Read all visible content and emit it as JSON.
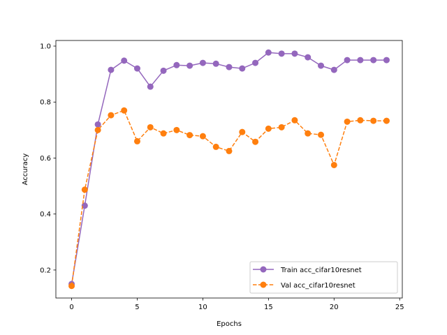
{
  "chart_data": {
    "type": "line",
    "title": "",
    "xlabel": "Epochs",
    "ylabel": "Accuracy",
    "xlim": [
      -1.2,
      25.2
    ],
    "ylim": [
      0.1,
      1.02
    ],
    "xticks": [
      0,
      5,
      10,
      15,
      20,
      25
    ],
    "yticks": [
      0.2,
      0.4,
      0.6,
      0.8,
      1.0
    ],
    "xtick_labels": [
      "0",
      "5",
      "10",
      "15",
      "20",
      "25"
    ],
    "ytick_labels": [
      "0.2",
      "0.4",
      "0.6",
      "0.8",
      "1.0"
    ],
    "grid": false,
    "legend_position": "lower-right",
    "x": [
      0,
      1,
      2,
      3,
      4,
      5,
      6,
      7,
      8,
      9,
      10,
      11,
      12,
      13,
      14,
      15,
      16,
      17,
      18,
      19,
      20,
      21,
      22,
      23,
      24
    ],
    "series": [
      {
        "name": "Train acc_cifar10resnet",
        "color": "#9467bd",
        "line_style": "solid",
        "marker": "circle",
        "values": [
          0.15,
          0.43,
          0.72,
          0.915,
          0.948,
          0.92,
          0.855,
          0.912,
          0.932,
          0.93,
          0.94,
          0.937,
          0.925,
          0.92,
          0.94,
          0.977,
          0.973,
          0.973,
          0.96,
          0.93,
          0.915,
          0.95,
          0.95,
          0.95,
          0.95
        ]
      },
      {
        "name": "Val acc_cifar10resnet",
        "color": "#ff7f0e",
        "line_style": "dashed",
        "marker": "circle",
        "values": [
          0.143,
          0.487,
          0.7,
          0.753,
          0.77,
          0.66,
          0.71,
          0.688,
          0.7,
          0.682,
          0.678,
          0.64,
          0.625,
          0.693,
          0.658,
          0.705,
          0.71,
          0.735,
          0.688,
          0.683,
          0.575,
          0.73,
          0.735,
          0.733,
          0.733
        ]
      }
    ]
  }
}
